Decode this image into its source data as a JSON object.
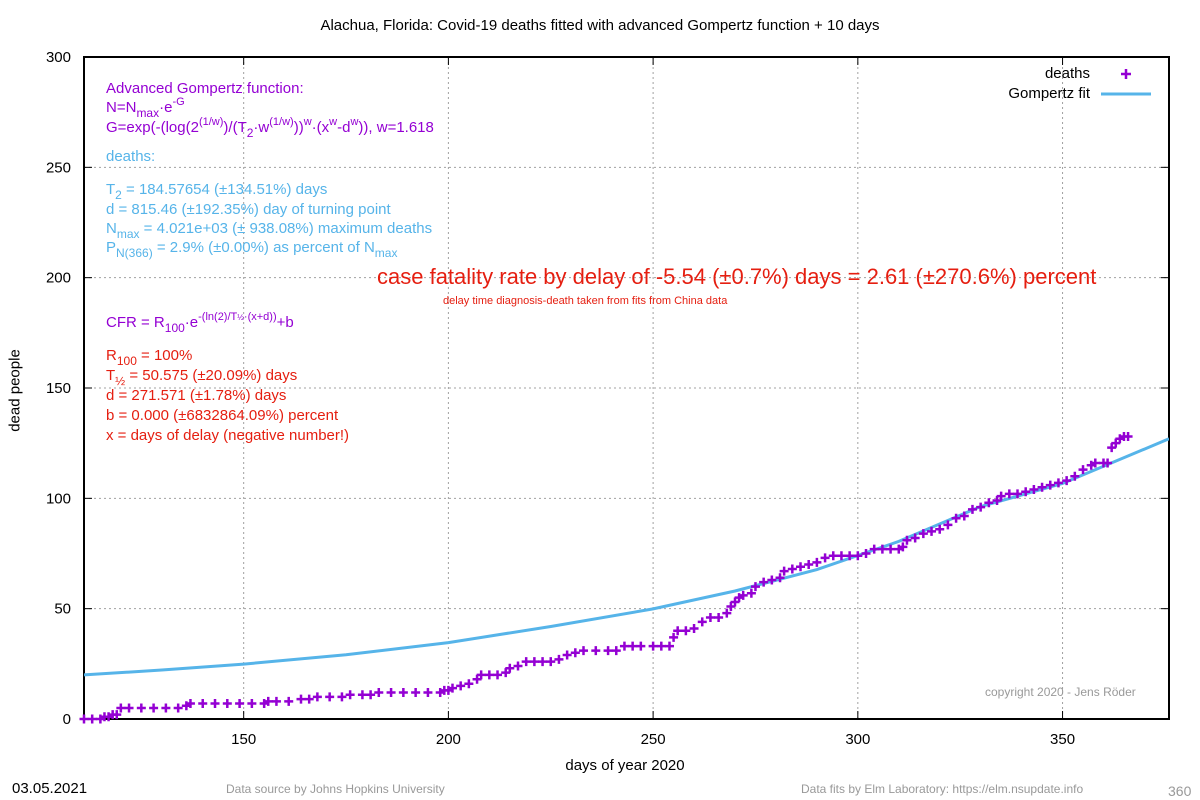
{
  "title": "Alachua,  Florida: Covid-19 deaths fitted with advanced Gompertz function + 10 days",
  "colors": {
    "deaths": "#9400d3",
    "fit": "#56b4e9",
    "cfr": "#e51e10",
    "grid": "#a0a0a0"
  },
  "chart_data": {
    "type": "scatter",
    "title": "Alachua,  Florida: Covid-19 deaths fitted with advanced Gompertz function + 10 days",
    "xlabel": "days of year 2020",
    "ylabel": "dead people",
    "xlim": [
      111,
      376
    ],
    "ylim": [
      0,
      300
    ],
    "xticks": [
      150,
      200,
      250,
      300,
      350
    ],
    "yticks": [
      0,
      50,
      100,
      150,
      200,
      250,
      300
    ],
    "grid": true,
    "legend_position": "top-right",
    "series": [
      {
        "name": "deaths",
        "style": "points",
        "marker": "plus",
        "color": "#9400d3",
        "points": [
          [
            111,
            0
          ],
          [
            113,
            0
          ],
          [
            115,
            0
          ],
          [
            116,
            1
          ],
          [
            117,
            1
          ],
          [
            118,
            2
          ],
          [
            119,
            2
          ],
          [
            120,
            5
          ],
          [
            122,
            5
          ],
          [
            125,
            5
          ],
          [
            128,
            5
          ],
          [
            131,
            5
          ],
          [
            134,
            5
          ],
          [
            136,
            6
          ],
          [
            137,
            7
          ],
          [
            140,
            7
          ],
          [
            143,
            7
          ],
          [
            146,
            7
          ],
          [
            149,
            7
          ],
          [
            152,
            7
          ],
          [
            155,
            7
          ],
          [
            156,
            8
          ],
          [
            158,
            8
          ],
          [
            161,
            8
          ],
          [
            164,
            9
          ],
          [
            166,
            9
          ],
          [
            168,
            10
          ],
          [
            171,
            10
          ],
          [
            174,
            10
          ],
          [
            176,
            11
          ],
          [
            179,
            11
          ],
          [
            181,
            11
          ],
          [
            183,
            12
          ],
          [
            186,
            12
          ],
          [
            189,
            12
          ],
          [
            192,
            12
          ],
          [
            195,
            12
          ],
          [
            198,
            12
          ],
          [
            199,
            13
          ],
          [
            200,
            13
          ],
          [
            201,
            14
          ],
          [
            203,
            15
          ],
          [
            205,
            16
          ],
          [
            207,
            18
          ],
          [
            208,
            20
          ],
          [
            210,
            20
          ],
          [
            212,
            20
          ],
          [
            214,
            21
          ],
          [
            215,
            23
          ],
          [
            217,
            24
          ],
          [
            219,
            26
          ],
          [
            221,
            26
          ],
          [
            223,
            26
          ],
          [
            225,
            26
          ],
          [
            227,
            27
          ],
          [
            229,
            29
          ],
          [
            231,
            30
          ],
          [
            233,
            31
          ],
          [
            236,
            31
          ],
          [
            239,
            31
          ],
          [
            241,
            31
          ],
          [
            243,
            33
          ],
          [
            245,
            33
          ],
          [
            247,
            33
          ],
          [
            250,
            33
          ],
          [
            252,
            33
          ],
          [
            254,
            33
          ],
          [
            255,
            37
          ],
          [
            256,
            40
          ],
          [
            258,
            40
          ],
          [
            260,
            41
          ],
          [
            262,
            44
          ],
          [
            264,
            46
          ],
          [
            266,
            46
          ],
          [
            268,
            48
          ],
          [
            269,
            51
          ],
          [
            270,
            53
          ],
          [
            271,
            55
          ],
          [
            272,
            56
          ],
          [
            274,
            57
          ],
          [
            275,
            60
          ],
          [
            277,
            62
          ],
          [
            279,
            63
          ],
          [
            281,
            64
          ],
          [
            282,
            67
          ],
          [
            284,
            68
          ],
          [
            286,
            69
          ],
          [
            288,
            70
          ],
          [
            290,
            71
          ],
          [
            292,
            73
          ],
          [
            294,
            74
          ],
          [
            296,
            74
          ],
          [
            298,
            74
          ],
          [
            300,
            74
          ],
          [
            302,
            75
          ],
          [
            304,
            77
          ],
          [
            306,
            77
          ],
          [
            308,
            77
          ],
          [
            310,
            77
          ],
          [
            311,
            78
          ],
          [
            312,
            81
          ],
          [
            314,
            82
          ],
          [
            316,
            84
          ],
          [
            318,
            85
          ],
          [
            320,
            86
          ],
          [
            322,
            88
          ],
          [
            324,
            91
          ],
          [
            326,
            92
          ],
          [
            328,
            95
          ],
          [
            330,
            96
          ],
          [
            332,
            98
          ],
          [
            334,
            99
          ],
          [
            335,
            101
          ],
          [
            337,
            102
          ],
          [
            339,
            102
          ],
          [
            341,
            103
          ],
          [
            343,
            104
          ],
          [
            345,
            105
          ],
          [
            347,
            106
          ],
          [
            349,
            107
          ],
          [
            351,
            108
          ],
          [
            353,
            110
          ],
          [
            355,
            113
          ],
          [
            357,
            115
          ],
          [
            358,
            116
          ],
          [
            360,
            116
          ],
          [
            361,
            116
          ],
          [
            362,
            123
          ],
          [
            363,
            125
          ],
          [
            364,
            127
          ],
          [
            365,
            128
          ],
          [
            366,
            128
          ]
        ]
      },
      {
        "name": "Gompertz fit",
        "style": "line",
        "color": "#56b4e9",
        "points": [
          [
            111,
            20
          ],
          [
            130,
            22.2
          ],
          [
            150,
            24.9
          ],
          [
            175,
            29.1
          ],
          [
            200,
            34.6
          ],
          [
            225,
            41.9
          ],
          [
            250,
            49.9
          ],
          [
            270,
            58
          ],
          [
            290,
            67.7
          ],
          [
            310,
            80.5
          ],
          [
            330,
            96.3
          ],
          [
            350,
            106.7
          ],
          [
            376,
            127
          ]
        ]
      }
    ]
  },
  "annotations": {
    "gompertz_head": "Advanced Gompertz function:",
    "formula_n": {
      "n": "N=N",
      "sub": "max",
      "dot": "·e",
      "sup": "-G"
    },
    "formula_g": {
      "a": " G=exp(-(log(2",
      "s1": "(1/w)",
      "b": ")/(T",
      "sub2": "2",
      "c": "·w",
      "s2": "(1/w)",
      "d": "))",
      "s3": "w",
      "e": "·(x",
      "s4": "w",
      "f": "-d",
      "s5": "w",
      "g": ")), w=1.618"
    },
    "deaths_head": "deaths:",
    "t2": {
      "t": "T",
      "sub": "2",
      "rest": " = 184.57654 (±134.51%) days"
    },
    "d_line": "d = 815.46 (±192.35%) day of turning point",
    "nmax": {
      "n": "N",
      "sub": "max",
      "rest": " = 4.021e+03 (± 938.08%) maximum deaths"
    },
    "pn": {
      "p": "P",
      "sub": "N(366)",
      "mid": " = 2.9% (±0.00%) as percent of N",
      "sub2": "max"
    },
    "cfr_headline": "case fatality rate by delay of -5.54 (±0.7%) days = 2.61 (±270.6%) percent",
    "cfr_note": "delay time diagnosis-death taken from fits from China data",
    "cfr_formula": {
      "a": "CFR = R",
      "sub": "100",
      "b": "·e",
      "sup": "-(ln(2)/T",
      "supsub": "½",
      "sup2": "·(x+d))",
      "c": "+b"
    },
    "r100": {
      "r": "R",
      "sub": "100",
      "rest": " = 100%"
    },
    "thalf": {
      "t": "T",
      "sub": "½",
      "rest": " = 50.575 (±20.09%) days"
    },
    "d2": "d = 271.571 (±1.78%) days",
    "b": "b = 0.000 (±6832864.09%) percent",
    "x": "x = days of delay (negative number!)"
  },
  "legend": {
    "deaths": "deaths",
    "fit": "Gompertz fit"
  },
  "copyright": "copyright 2020 - Jens Röder",
  "footer": {
    "date": "03.05.2021",
    "source": "Data source by Johns Hopkins University",
    "fits": "Data fits by Elm Laboratory: https://elm.nsupdate.info",
    "number": "360"
  }
}
